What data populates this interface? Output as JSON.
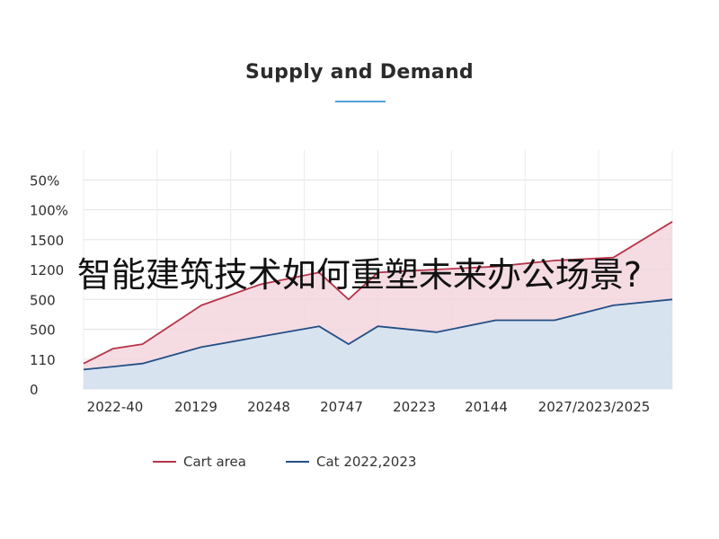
{
  "overlay_caption": "智能建筑技术如何重塑未来办公场景?",
  "chart_data": {
    "type": "area",
    "title": "Supply and Demand",
    "xlabel": "",
    "ylabel": "",
    "y_tick_labels": [
      "0",
      "110",
      "500",
      "500",
      "1200",
      "1500",
      "100%",
      "50%"
    ],
    "x_tick_labels": [
      "2022-40",
      "20129",
      "20248",
      "20747",
      "20223",
      "20144",
      "2027/2023/2025"
    ],
    "grid": true,
    "legend_position": "bottom",
    "x": [
      0,
      0.5,
      1,
      2,
      3,
      4,
      4.5,
      5,
      6,
      7,
      8,
      9,
      10
    ],
    "series": [
      {
        "name": "Cart area",
        "color": "#b8344a",
        "fill": "#f3d6de",
        "values": [
          0.85,
          1.35,
          1.5,
          2.8,
          3.5,
          3.9,
          3.0,
          3.9,
          4.0,
          4.1,
          4.3,
          4.4,
          5.6
        ]
      },
      {
        "name": "Cat 2022,2023",
        "color": "#244f86",
        "fill": "#d4e3f0",
        "values": [
          0.65,
          0.75,
          0.85,
          1.4,
          1.75,
          2.1,
          1.5,
          2.1,
          1.9,
          2.3,
          2.3,
          2.8,
          3.0
        ]
      }
    ],
    "ylim": [
      0,
      8
    ],
    "xlim": [
      0,
      10
    ]
  }
}
